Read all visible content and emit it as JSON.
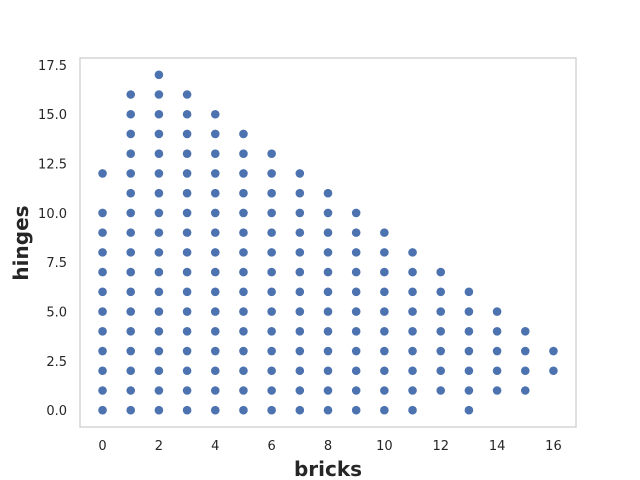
{
  "chart_data": {
    "type": "scatter",
    "xlabel": "bricks",
    "ylabel": "hinges",
    "xlim": [
      -0.8,
      16.8
    ],
    "ylim": [
      -0.85,
      17.85
    ],
    "xticks": [
      0,
      2,
      4,
      6,
      8,
      10,
      12,
      14,
      16
    ],
    "xtick_labels": [
      "0",
      "2",
      "4",
      "6",
      "8",
      "10",
      "12",
      "14",
      "16"
    ],
    "yticks": [
      0,
      2.5,
      5,
      7.5,
      10,
      12.5,
      15,
      17.5
    ],
    "ytick_labels": [
      "0.0",
      "2.5",
      "5.0",
      "7.5",
      "10.0",
      "12.5",
      "15.0",
      "17.5"
    ],
    "grid": false,
    "marker_color": "#4c72b0",
    "axes_edge_color": "#cccccc",
    "points": [
      [
        0,
        0
      ],
      [
        0,
        1
      ],
      [
        0,
        2
      ],
      [
        0,
        3
      ],
      [
        0,
        4
      ],
      [
        0,
        5
      ],
      [
        0,
        6
      ],
      [
        0,
        7
      ],
      [
        0,
        8
      ],
      [
        0,
        9
      ],
      [
        0,
        10
      ],
      [
        0,
        12
      ],
      [
        1,
        0
      ],
      [
        1,
        1
      ],
      [
        1,
        2
      ],
      [
        1,
        3
      ],
      [
        1,
        4
      ],
      [
        1,
        5
      ],
      [
        1,
        6
      ],
      [
        1,
        7
      ],
      [
        1,
        8
      ],
      [
        1,
        9
      ],
      [
        1,
        10
      ],
      [
        1,
        11
      ],
      [
        1,
        12
      ],
      [
        1,
        13
      ],
      [
        1,
        14
      ],
      [
        1,
        15
      ],
      [
        1,
        16
      ],
      [
        2,
        0
      ],
      [
        2,
        1
      ],
      [
        2,
        2
      ],
      [
        2,
        3
      ],
      [
        2,
        4
      ],
      [
        2,
        5
      ],
      [
        2,
        6
      ],
      [
        2,
        7
      ],
      [
        2,
        8
      ],
      [
        2,
        9
      ],
      [
        2,
        10
      ],
      [
        2,
        11
      ],
      [
        2,
        12
      ],
      [
        2,
        13
      ],
      [
        2,
        14
      ],
      [
        2,
        15
      ],
      [
        2,
        16
      ],
      [
        2,
        17
      ],
      [
        3,
        0
      ],
      [
        3,
        1
      ],
      [
        3,
        2
      ],
      [
        3,
        3
      ],
      [
        3,
        4
      ],
      [
        3,
        5
      ],
      [
        3,
        6
      ],
      [
        3,
        7
      ],
      [
        3,
        8
      ],
      [
        3,
        9
      ],
      [
        3,
        10
      ],
      [
        3,
        11
      ],
      [
        3,
        12
      ],
      [
        3,
        13
      ],
      [
        3,
        14
      ],
      [
        3,
        15
      ],
      [
        3,
        16
      ],
      [
        4,
        0
      ],
      [
        4,
        1
      ],
      [
        4,
        2
      ],
      [
        4,
        3
      ],
      [
        4,
        4
      ],
      [
        4,
        5
      ],
      [
        4,
        6
      ],
      [
        4,
        7
      ],
      [
        4,
        8
      ],
      [
        4,
        9
      ],
      [
        4,
        10
      ],
      [
        4,
        11
      ],
      [
        4,
        12
      ],
      [
        4,
        13
      ],
      [
        4,
        14
      ],
      [
        4,
        15
      ],
      [
        5,
        0
      ],
      [
        5,
        1
      ],
      [
        5,
        2
      ],
      [
        5,
        3
      ],
      [
        5,
        4
      ],
      [
        5,
        5
      ],
      [
        5,
        6
      ],
      [
        5,
        7
      ],
      [
        5,
        8
      ],
      [
        5,
        9
      ],
      [
        5,
        10
      ],
      [
        5,
        11
      ],
      [
        5,
        12
      ],
      [
        5,
        13
      ],
      [
        5,
        14
      ],
      [
        6,
        0
      ],
      [
        6,
        1
      ],
      [
        6,
        2
      ],
      [
        6,
        3
      ],
      [
        6,
        4
      ],
      [
        6,
        5
      ],
      [
        6,
        6
      ],
      [
        6,
        7
      ],
      [
        6,
        8
      ],
      [
        6,
        9
      ],
      [
        6,
        10
      ],
      [
        6,
        11
      ],
      [
        6,
        12
      ],
      [
        6,
        13
      ],
      [
        7,
        0
      ],
      [
        7,
        1
      ],
      [
        7,
        2
      ],
      [
        7,
        3
      ],
      [
        7,
        4
      ],
      [
        7,
        5
      ],
      [
        7,
        6
      ],
      [
        7,
        7
      ],
      [
        7,
        8
      ],
      [
        7,
        9
      ],
      [
        7,
        10
      ],
      [
        7,
        11
      ],
      [
        7,
        12
      ],
      [
        8,
        0
      ],
      [
        8,
        1
      ],
      [
        8,
        2
      ],
      [
        8,
        3
      ],
      [
        8,
        4
      ],
      [
        8,
        5
      ],
      [
        8,
        6
      ],
      [
        8,
        7
      ],
      [
        8,
        8
      ],
      [
        8,
        9
      ],
      [
        8,
        10
      ],
      [
        8,
        11
      ],
      [
        9,
        0
      ],
      [
        9,
        1
      ],
      [
        9,
        2
      ],
      [
        9,
        3
      ],
      [
        9,
        4
      ],
      [
        9,
        5
      ],
      [
        9,
        6
      ],
      [
        9,
        7
      ],
      [
        9,
        8
      ],
      [
        9,
        9
      ],
      [
        9,
        10
      ],
      [
        10,
        0
      ],
      [
        10,
        1
      ],
      [
        10,
        2
      ],
      [
        10,
        3
      ],
      [
        10,
        4
      ],
      [
        10,
        5
      ],
      [
        10,
        6
      ],
      [
        10,
        7
      ],
      [
        10,
        8
      ],
      [
        10,
        9
      ],
      [
        11,
        0
      ],
      [
        11,
        1
      ],
      [
        11,
        2
      ],
      [
        11,
        3
      ],
      [
        11,
        4
      ],
      [
        11,
        5
      ],
      [
        11,
        6
      ],
      [
        11,
        7
      ],
      [
        11,
        8
      ],
      [
        12,
        1
      ],
      [
        12,
        2
      ],
      [
        12,
        3
      ],
      [
        12,
        4
      ],
      [
        12,
        5
      ],
      [
        12,
        6
      ],
      [
        12,
        7
      ],
      [
        13,
        0
      ],
      [
        13,
        1
      ],
      [
        13,
        2
      ],
      [
        13,
        3
      ],
      [
        13,
        4
      ],
      [
        13,
        5
      ],
      [
        13,
        6
      ],
      [
        14,
        1
      ],
      [
        14,
        2
      ],
      [
        14,
        3
      ],
      [
        14,
        4
      ],
      [
        14,
        5
      ],
      [
        15,
        1
      ],
      [
        15,
        2
      ],
      [
        15,
        3
      ],
      [
        15,
        4
      ],
      [
        16,
        2
      ],
      [
        16,
        3
      ]
    ]
  }
}
